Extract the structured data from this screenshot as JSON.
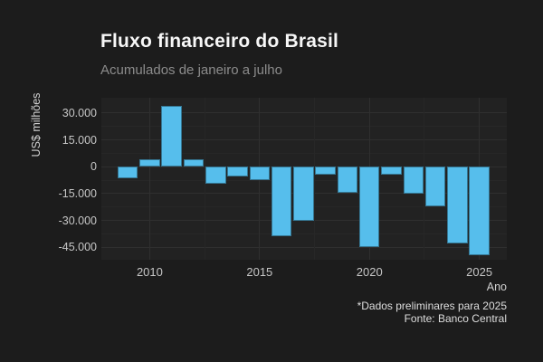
{
  "header": {
    "title": "Fluxo financeiro do Brasil",
    "subtitle": "Acumulados de janeiro a julho"
  },
  "footer": {
    "caption_line1": "*Dados preliminares para 2025",
    "caption_line2": "Fonte: Banco Central"
  },
  "chart_data": {
    "type": "bar",
    "title": "Fluxo financeiro do Brasil",
    "subtitle": "Acumulados de janeiro a julho",
    "xlabel": "Ano",
    "ylabel": "US$ milhões",
    "unit": "US$ milhões",
    "categories": [
      2009,
      2010,
      2011,
      2012,
      2013,
      2014,
      2015,
      2016,
      2017,
      2018,
      2019,
      2020,
      2021,
      2022,
      2023,
      2024,
      2025
    ],
    "values": [
      -6400,
      4300,
      33800,
      4400,
      -9300,
      -5600,
      -7400,
      -39000,
      -30000,
      -4600,
      -14400,
      -45000,
      -4500,
      -15100,
      -22200,
      -43000,
      -49600
    ],
    "xlim": [
      2007.8,
      2026.25
    ],
    "ylim": [
      -51900,
      38500
    ],
    "yticks": {
      "values": [
        30000,
        15000,
        0,
        -15000,
        -30000,
        -45000
      ],
      "labels": [
        "30.000",
        "15.000",
        "0",
        "-15.000",
        "-30.000",
        "-45.000"
      ]
    },
    "yticks_minor": [
      22500,
      7500,
      -7500,
      -22500,
      -37500
    ],
    "xticks": {
      "values": [
        2010,
        2015,
        2020,
        2025
      ],
      "labels": [
        "2010",
        "2015",
        "2020",
        "2025"
      ]
    },
    "xticks_minor": [
      2012.5,
      2017.5,
      2022.5
    ],
    "grid": true,
    "legend": false,
    "bar_color": "#56BEEC",
    "annotations": [
      "*Dados preliminares para 2025",
      "Fonte: Banco Central"
    ]
  },
  "colors": {
    "background": "#1c1c1c",
    "panel_background": "#222222",
    "bar": "#56BEEC",
    "grid_major": "#2f2f2f",
    "grid_minor": "#272727",
    "title_text": "#f7f7f7",
    "subtitle_text": "#8c8c8c",
    "tick_text": "#c6c6c6",
    "axis_title_text": "#d2d2d2",
    "caption_text": "#dedede"
  }
}
